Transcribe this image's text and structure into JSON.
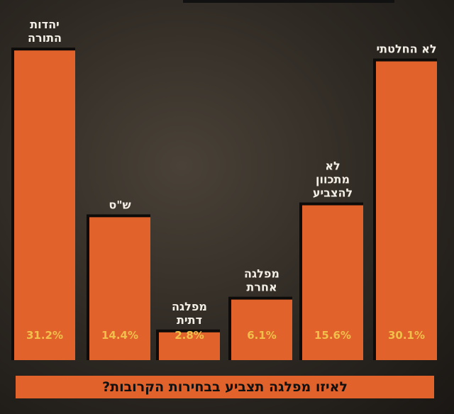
{
  "chart_data": {
    "type": "bar",
    "categories": [
      [
        "יהדות",
        "התורה"
      ],
      [
        "ש\"ס"
      ],
      [
        "מפלגה",
        "דתית"
      ],
      [
        "מפלגה",
        "אחרת"
      ],
      [
        "לא",
        "מתכוון",
        "להצביע"
      ],
      [
        "לא החלטתי"
      ]
    ],
    "values": [
      31.2,
      14.4,
      2.8,
      6.1,
      15.6,
      30.1
    ],
    "value_labels": [
      "31.2%",
      "14.4%",
      "2.8%",
      "6.1%",
      "15.6%",
      "30.1%"
    ],
    "title": "לאיזו מפלגה תצביע בבחירות הקרובות?",
    "xlabel": "",
    "ylabel": "",
    "ylim": [
      0,
      32
    ],
    "grid": false,
    "legend": "none"
  },
  "colors": {
    "bar": "#e2622b",
    "bar_shadow": "#0e0c0a",
    "value_text": "#f0c04a",
    "label_text": "#f4efe6"
  }
}
